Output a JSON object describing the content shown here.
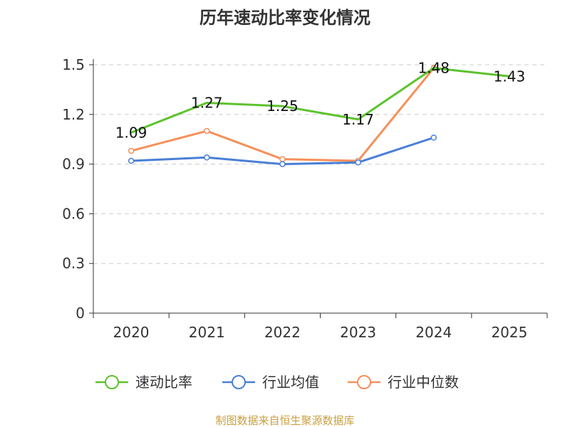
{
  "chart_data": {
    "type": "line",
    "title": "历年速动比率变化情况",
    "xlabel": "",
    "ylabel": "",
    "categories": [
      "2020",
      "2021",
      "2022",
      "2023",
      "2024",
      "2025"
    ],
    "y_ticks": [
      "0",
      "0.3",
      "0.6",
      "0.9",
      "1.2",
      "1.5"
    ],
    "ylim": [
      0,
      1.5
    ],
    "grid": true,
    "legend_position": "bottom",
    "series": [
      {
        "name": "速动比率",
        "color": "#5cc22d",
        "values": [
          1.09,
          1.27,
          1.25,
          1.17,
          1.48,
          1.43
        ],
        "labels": [
          "1.09",
          "1.27",
          "1.25",
          "1.17",
          "1.48",
          "1.43"
        ],
        "show_markers": false
      },
      {
        "name": "行业均值",
        "color": "#4a7fd6",
        "values": [
          0.92,
          0.94,
          0.9,
          0.91,
          1.06,
          null
        ],
        "show_markers": true
      },
      {
        "name": "行业中位数",
        "color": "#f5905a",
        "values": [
          0.98,
          1.1,
          0.93,
          0.92,
          1.48,
          null
        ],
        "show_markers": true
      }
    ],
    "source": "制图数据来自恒生聚源数据库"
  }
}
